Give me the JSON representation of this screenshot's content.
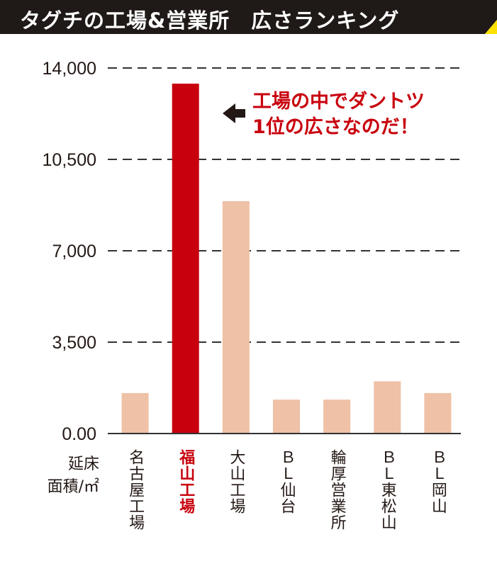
{
  "title": "タグチの工場&営業所　広さランキング",
  "colors": {
    "title_bg": "#1f1a17",
    "title_accent": "#ffe100",
    "highlight": "#c8000d",
    "bar": "#efc1a6",
    "grid": "#333333",
    "text": "#231815"
  },
  "chart_data": {
    "type": "bar",
    "ylabel": [
      "延床",
      "面積/㎡"
    ],
    "ylim": [
      0,
      14000
    ],
    "yticks": [
      0,
      3500,
      7000,
      10500,
      14000
    ],
    "ytick_labels": [
      "0.00",
      "3,500",
      "7,000",
      "10,500",
      "14,000"
    ],
    "grid": "dashed",
    "categories": [
      "名古屋工場",
      "福山工場",
      "大山工場",
      "ＢＬ仙台",
      "輪厚営業所",
      "ＢＬ東松山",
      "ＢＬ岡山"
    ],
    "values": [
      1550,
      13400,
      8900,
      1300,
      1300,
      2000,
      1550
    ],
    "highlight_index": 1,
    "annotation": {
      "lines": [
        "工場の中でダントツ",
        "1位の広さなのだ！"
      ],
      "arrow": "left"
    }
  }
}
